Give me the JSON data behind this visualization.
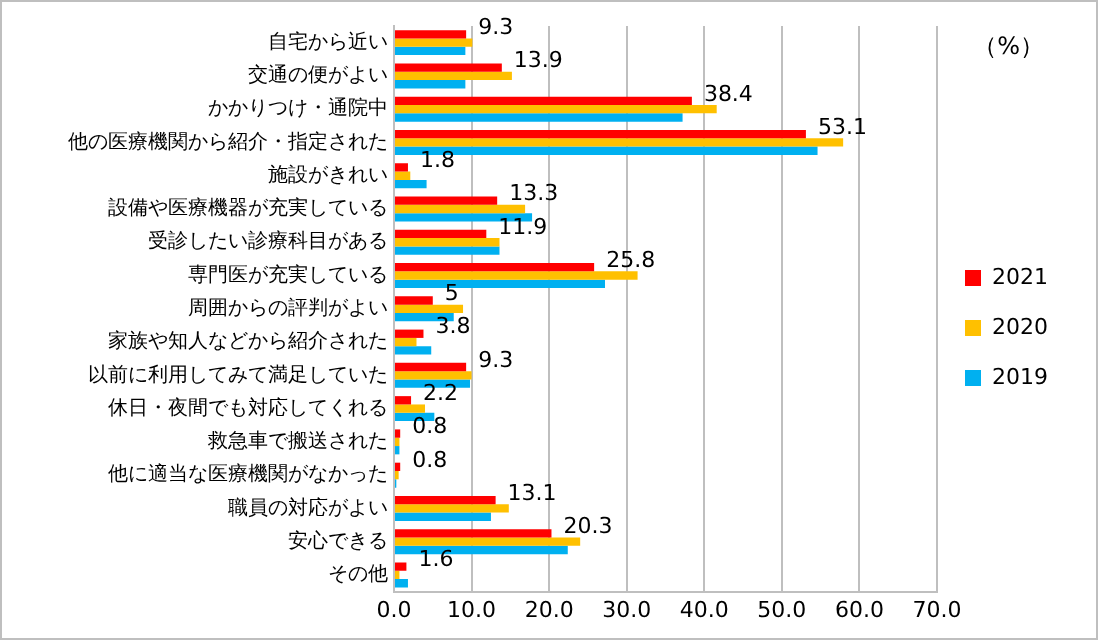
{
  "chart_data": {
    "type": "bar",
    "orientation": "horizontal",
    "categories": [
      "自宅から近い",
      "交通の便がよい",
      "かかりつけ・通院中",
      "他の医療機関から紹介・指定された",
      "施設がきれい",
      "設備や医療機器が充実している",
      "受診したい診療科目がある",
      "専門医が充実している",
      "周囲からの評判がよい",
      "家族や知人などから紹介された",
      "以前に利用してみて満足していた",
      "休日・夜間でも対応してくれる",
      "救急車で搬送された",
      "他に適当な医療機関がなかった",
      "職員の対応がよい",
      "安心できる",
      "その他"
    ],
    "series": [
      {
        "name": "2021",
        "color": "#ff0000",
        "values": [
          9.3,
          13.9,
          38.4,
          53.1,
          1.8,
          13.3,
          11.9,
          25.8,
          5,
          3.8,
          9.3,
          2.2,
          0.8,
          0.8,
          13.1,
          20.3,
          1.6
        ],
        "value_labels": [
          "9.3",
          "13.9",
          "38.4",
          "53.1",
          "1.8",
          "13.3",
          "11.9",
          "25.8",
          "5",
          "3.8",
          "9.3",
          "2.2",
          "0.8",
          "0.8",
          "13.1",
          "20.3",
          "1.6"
        ]
      },
      {
        "name": "2020",
        "color": "#ffc000",
        "values": [
          10.1,
          15.2,
          41.6,
          57.9,
          2.1,
          16.9,
          13.6,
          31.4,
          8.9,
          2.9,
          10.0,
          4.0,
          0.7,
          0.6,
          14.8,
          24.0,
          0.7
        ]
      },
      {
        "name": "2019",
        "color": "#00b0f0",
        "values": [
          9.2,
          9.2,
          37.2,
          54.6,
          4.2,
          17.8,
          13.6,
          27.2,
          7.7,
          4.8,
          9.8,
          5.2,
          0.7,
          0.3,
          12.5,
          22.4,
          1.8
        ]
      }
    ],
    "xlim": [
      0,
      70
    ],
    "xticks": [
      {
        "value": 0,
        "label": "0.0"
      },
      {
        "value": 10,
        "label": "10.0"
      },
      {
        "value": 20,
        "label": "20.0"
      },
      {
        "value": 30,
        "label": "30.0"
      },
      {
        "value": 40,
        "label": "40.0"
      },
      {
        "value": 50,
        "label": "50.0"
      },
      {
        "value": 60,
        "label": "60.0"
      },
      {
        "value": 70,
        "label": "70.0"
      }
    ],
    "grid": "x",
    "legend": "right",
    "annotations": [
      "（%）"
    ]
  }
}
